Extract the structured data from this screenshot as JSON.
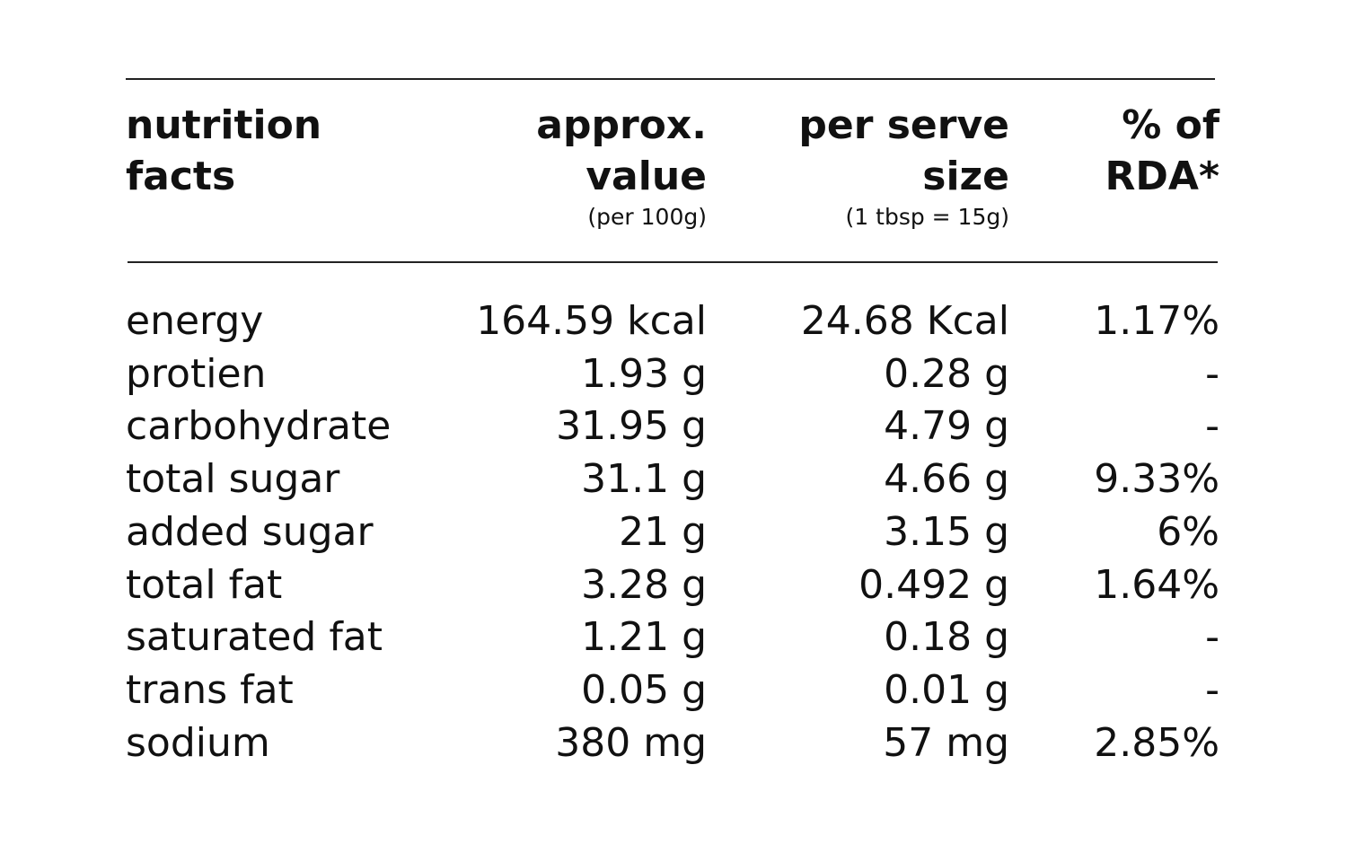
{
  "table": {
    "headers": [
      {
        "lines": [
          "nutrition",
          "facts"
        ]
      },
      {
        "lines": [
          "approx.",
          "value"
        ],
        "note": "(per 100g)"
      },
      {
        "lines": [
          "per serve",
          "size"
        ],
        "note": "(1 tbsp = 15g)"
      },
      {
        "lines": [
          "% of",
          "RDA*"
        ]
      }
    ],
    "rows": [
      [
        "energy",
        "164.59 kcal",
        "24.68 Kcal",
        "1.17%"
      ],
      [
        "protien",
        "1.93 g",
        "0.28 g",
        "-"
      ],
      [
        "carbohydrate",
        "31.95 g",
        "4.79 g",
        "-"
      ],
      [
        "total sugar",
        "31.1 g",
        "4.66 g",
        "9.33%"
      ],
      [
        "added sugar",
        "21 g",
        "3.15 g",
        "6%"
      ],
      [
        "total fat",
        "3.28 g",
        "0.492 g",
        "1.64%"
      ],
      [
        "saturated fat",
        "1.21 g",
        "0.18 g",
        "-"
      ],
      [
        "trans fat",
        "0.05 g",
        "0.01 g",
        "-"
      ],
      [
        "sodium",
        "380 mg",
        "57 mg",
        "2.85%"
      ]
    ]
  }
}
